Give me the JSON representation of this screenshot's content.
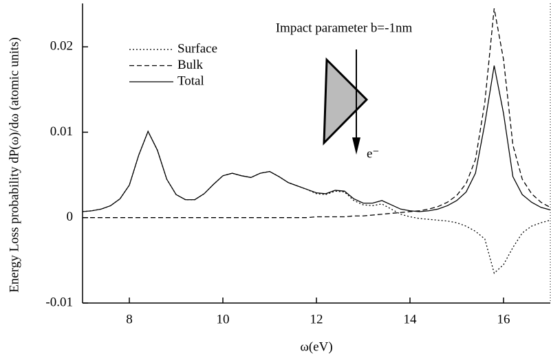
{
  "chart_data": {
    "type": "line",
    "annotations": [
      "Impact parameter b=-1nm",
      "e⁻"
    ],
    "xlabel": "ω(eV)",
    "ylabel": "Energy Loss probability dP(ω)/dω  (atomic units)",
    "x": [
      7,
      7.2,
      7.4,
      7.6,
      7.8,
      8,
      8.2,
      8.4,
      8.6,
      8.8,
      9,
      9.2,
      9.4,
      9.6,
      9.8,
      10,
      10.2,
      10.4,
      10.6,
      10.8,
      11,
      11.2,
      11.4,
      11.6,
      11.8,
      12,
      12.2,
      12.4,
      12.6,
      12.8,
      13,
      13.2,
      13.4,
      13.6,
      13.8,
      14,
      14.2,
      14.4,
      14.6,
      14.8,
      15,
      15.2,
      15.4,
      15.6,
      15.8,
      16,
      16.2,
      16.4,
      16.6,
      16.8,
      17
    ],
    "series": [
      {
        "name": "Surface",
        "color": "#000000",
        "style": "dotted",
        "values": [
          0.0007,
          0.0008,
          0.001,
          0.0014,
          0.0022,
          0.0038,
          0.0073,
          0.0101,
          0.0079,
          0.0045,
          0.0027,
          0.0021,
          0.0021,
          0.0028,
          0.0039,
          0.0049,
          0.0052,
          0.0049,
          0.0047,
          0.0052,
          0.0054,
          0.0048,
          0.0041,
          0.0037,
          0.0033,
          0.0028,
          0.0027,
          0.0031,
          0.003,
          0.002,
          0.0015,
          0.0014,
          0.0016,
          0.001,
          0.0004,
          0.0001,
          -0.0001,
          -0.0002,
          -0.0003,
          -0.0004,
          -0.0006,
          -0.001,
          -0.0016,
          -0.0025,
          -0.0065,
          -0.0055,
          -0.0035,
          -0.0018,
          -0.001,
          -0.0006,
          -0.0003
        ]
      },
      {
        "name": "Bulk",
        "color": "#000000",
        "style": "dashed",
        "values": [
          0,
          0,
          0,
          0,
          0,
          0,
          0,
          0,
          0,
          0,
          0,
          0,
          0,
          0,
          0,
          0,
          0,
          0,
          0,
          0,
          0,
          0,
          0,
          0,
          0,
          0.0001,
          0.0001,
          0.0001,
          0.0001,
          0.0002,
          0.0002,
          0.0003,
          0.0004,
          0.0005,
          0.0006,
          0.0007,
          0.0008,
          0.001,
          0.0013,
          0.0018,
          0.0026,
          0.004,
          0.0068,
          0.0135,
          0.0245,
          0.0185,
          0.0085,
          0.0045,
          0.0028,
          0.0018,
          0.0012
        ]
      },
      {
        "name": "Total",
        "color": "#000000",
        "style": "solid",
        "values": [
          0.0007,
          0.0008,
          0.001,
          0.0014,
          0.0022,
          0.0038,
          0.0073,
          0.0101,
          0.0079,
          0.0045,
          0.0027,
          0.0021,
          0.0021,
          0.0028,
          0.0039,
          0.0049,
          0.0052,
          0.0049,
          0.0047,
          0.0052,
          0.0054,
          0.0048,
          0.0041,
          0.0037,
          0.0033,
          0.0029,
          0.0028,
          0.0032,
          0.0031,
          0.0022,
          0.0017,
          0.0017,
          0.002,
          0.0015,
          0.001,
          0.0008,
          0.0007,
          0.0008,
          0.001,
          0.0014,
          0.002,
          0.003,
          0.0052,
          0.011,
          0.0178,
          0.0122,
          0.0048,
          0.0027,
          0.0018,
          0.0012,
          0.0009
        ]
      }
    ],
    "xlim": [
      7,
      17
    ],
    "xticks": [
      8,
      10,
      12,
      14,
      16
    ],
    "ylim": [
      -0.01,
      0.025
    ],
    "yticks": [
      -0.01,
      0,
      0.01,
      0.02
    ],
    "legend": "upper-left",
    "grid": false
  }
}
